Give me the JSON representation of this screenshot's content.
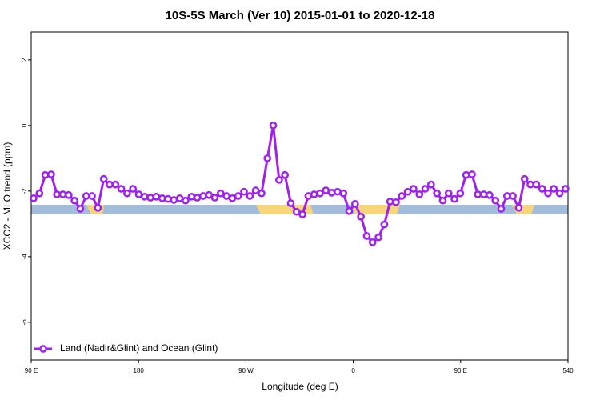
{
  "chart_data": {
    "type": "line",
    "title": "10S-5S March (Ver 10)   2015-01-01 to 2020-12-18",
    "x_label": "Longitude (deg E)",
    "y_label": "XCO2 - MLO trend (ppm)",
    "xlim": [
      90,
      540
    ],
    "xticks": [
      {
        "value": 90,
        "label": "90 E"
      },
      180,
      {
        "value": 270,
        "label": "90 W"
      },
      {
        "value": 360,
        "label": "0"
      },
      {
        "value": 450,
        "label": "90 E"
      },
      540
    ],
    "ylim": [
      -7.15,
      2.85
    ],
    "yticks": [
      -6,
      -4,
      -2,
      0,
      2
    ],
    "legend": "bottom-left",
    "x": [
      92,
      96.9,
      101.8,
      106.7,
      111.6,
      116.5,
      121.4,
      126.3,
      131.2,
      136.1,
      141,
      145.9,
      150.8,
      155.7,
      160.6,
      165.5,
      170.4,
      175.3,
      180.2,
      185.1,
      190,
      194.9,
      199.8,
      204.7,
      209.6,
      214.5,
      219.4,
      224.3,
      229.2,
      234.1,
      239,
      243.9,
      248.8,
      253.7,
      258.6,
      263.5,
      268.4,
      273.3,
      278.2,
      283.1,
      288,
      292.9,
      297.8,
      302.7,
      307.6,
      312.5,
      317.4,
      322.3,
      327.2,
      332.1,
      337,
      341.9,
      346.8,
      351.7,
      356.6,
      361.5,
      366.4,
      371.3,
      376.2,
      381.1,
      386,
      390.9,
      395.8,
      400.7,
      405.6,
      410.5,
      415.4,
      420.3,
      425.2,
      430.1,
      435,
      439.9,
      444.8,
      449.7,
      454.6,
      459.5,
      464.4,
      469.3,
      474.2,
      479.1,
      484,
      488.9,
      493.8,
      498.7,
      503.6,
      508.5,
      513.4,
      518.3,
      523.2,
      528.1,
      533,
      537.9
    ],
    "series": [
      {
        "name": "Land (Nadir&Glint) and Ocean (Glint)",
        "color": "#a020f0",
        "values": [
          -2.22,
          -2.07,
          -1.51,
          -1.49,
          -2.1,
          -2.1,
          -2.12,
          -2.29,
          -2.54,
          -2.15,
          -2.15,
          -2.51,
          -1.63,
          -1.8,
          -1.8,
          -1.93,
          -2.07,
          -1.93,
          -2.1,
          -2.17,
          -2.2,
          -2.17,
          -2.22,
          -2.24,
          -2.27,
          -2.22,
          -2.29,
          -2.17,
          -2.2,
          -2.15,
          -2.12,
          -2.2,
          -2.07,
          -2.15,
          -2.22,
          -2.15,
          -2.02,
          -2.15,
          -1.98,
          -2.07,
          -1.0,
          0.0,
          -1.66,
          -1.51,
          -2.37,
          -2.63,
          -2.71,
          -2.15,
          -2.1,
          -2.07,
          -1.98,
          -2.05,
          -2.02,
          -2.07,
          -2.61,
          -2.39,
          -2.78,
          -3.37,
          -3.56,
          -3.41,
          -3.02,
          -2.32,
          -2.34,
          -2.15,
          -2.02,
          -1.93,
          -2.1,
          -1.93,
          -1.8,
          -2.07,
          -2.29,
          -2.07,
          -2.24,
          -2.07,
          -1.51,
          -1.49,
          -2.1,
          -2.1,
          -2.12,
          -2.29,
          -2.54,
          -2.15,
          -2.15,
          -2.51,
          -1.63,
          -1.8,
          -1.8,
          -1.93,
          -2.07,
          -1.93,
          -2.07,
          -1.93
        ]
      }
    ]
  }
}
